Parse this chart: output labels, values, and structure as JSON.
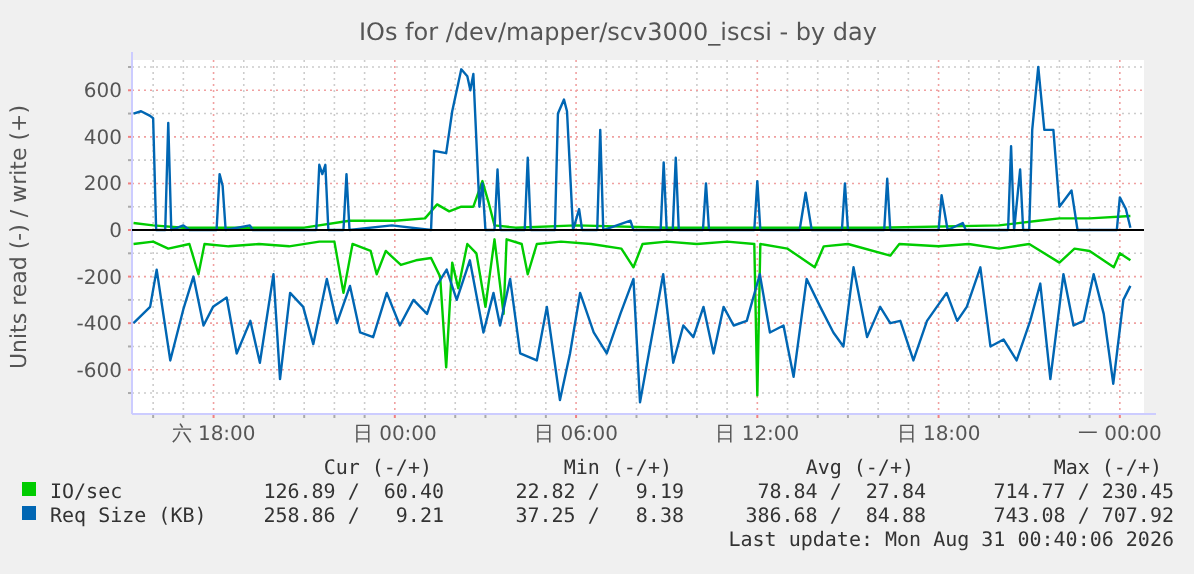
{
  "chart_data": {
    "type": "line",
    "title": "IOs for /dev/mapper/scv3000_iscsi - by day",
    "ylabel": "Units read (-) / write (+)",
    "xlim": [
      "2026-08-29T15:18",
      "2026-08-31T00:48"
    ],
    "ylim": [
      -790,
      730
    ],
    "xticks": [
      {
        "value": "2026-08-29T16:00",
        "label": null
      },
      {
        "value": "2026-08-29T17:00",
        "label": null
      },
      {
        "value": "2026-08-29T18:00",
        "label": "六 18:00"
      },
      {
        "value": "2026-08-29T19:00",
        "label": null
      },
      {
        "value": "2026-08-29T20:00",
        "label": null
      },
      {
        "value": "2026-08-29T21:00",
        "label": null
      },
      {
        "value": "2026-08-29T22:00",
        "label": null
      },
      {
        "value": "2026-08-29T23:00",
        "label": null
      },
      {
        "value": "2026-08-30T00:00",
        "label": "日 00:00"
      },
      {
        "value": "2026-08-30T01:00",
        "label": null
      },
      {
        "value": "2026-08-30T02:00",
        "label": null
      },
      {
        "value": "2026-08-30T03:00",
        "label": null
      },
      {
        "value": "2026-08-30T04:00",
        "label": null
      },
      {
        "value": "2026-08-30T05:00",
        "label": null
      },
      {
        "value": "2026-08-30T06:00",
        "label": "日 06:00"
      },
      {
        "value": "2026-08-30T07:00",
        "label": null
      },
      {
        "value": "2026-08-30T08:00",
        "label": null
      },
      {
        "value": "2026-08-30T09:00",
        "label": null
      },
      {
        "value": "2026-08-30T10:00",
        "label": null
      },
      {
        "value": "2026-08-30T11:00",
        "label": null
      },
      {
        "value": "2026-08-30T12:00",
        "label": "日 12:00"
      },
      {
        "value": "2026-08-30T13:00",
        "label": null
      },
      {
        "value": "2026-08-30T14:00",
        "label": null
      },
      {
        "value": "2026-08-30T15:00",
        "label": null
      },
      {
        "value": "2026-08-30T16:00",
        "label": null
      },
      {
        "value": "2026-08-30T17:00",
        "label": null
      },
      {
        "value": "2026-08-30T18:00",
        "label": "日 18:00"
      },
      {
        "value": "2026-08-30T19:00",
        "label": null
      },
      {
        "value": "2026-08-30T20:00",
        "label": null
      },
      {
        "value": "2026-08-30T21:00",
        "label": null
      },
      {
        "value": "2026-08-30T22:00",
        "label": null
      },
      {
        "value": "2026-08-30T23:00",
        "label": null
      },
      {
        "value": "2026-08-31T00:00",
        "label": "一 00:00"
      }
    ],
    "yticks": [
      {
        "value": -700,
        "label": null
      },
      -600,
      {
        "value": -500,
        "label": null
      },
      -400,
      {
        "value": -300,
        "label": null
      },
      -200,
      {
        "value": -100,
        "label": null
      },
      0,
      {
        "value": 100,
        "label": null
      },
      200,
      {
        "value": 300,
        "label": null
      },
      400,
      {
        "value": 500,
        "label": null
      },
      600,
      {
        "value": 700,
        "label": null
      }
    ],
    "grid": true,
    "legend": "bottom",
    "ref_lines": [
      {
        "axis": "y",
        "value": 0,
        "color": "#000000"
      }
    ],
    "series": [
      {
        "name": "IO/sec",
        "color": "#00cc00",
        "x": [
          "2026-08-29T15:21",
          "2026-08-29T16:00",
          "2026-08-29T17:00",
          "2026-08-29T19:00",
          "2026-08-29T21:00",
          "2026-08-29T22:30",
          "2026-08-30T00:00",
          "2026-08-30T01:00",
          "2026-08-30T01:24",
          "2026-08-30T01:48",
          "2026-08-30T02:12",
          "2026-08-30T02:36",
          "2026-08-30T02:54",
          "2026-08-30T03:06",
          "2026-08-30T03:18",
          "2026-08-30T04:00",
          "2026-08-30T06:00",
          "2026-08-30T09:00",
          "2026-08-30T12:00",
          "2026-08-30T16:00",
          "2026-08-30T20:00",
          "2026-08-30T21:18",
          "2026-08-30T22:00",
          "2026-08-30T23:00",
          "2026-08-31T00:21"
        ],
        "values": [
          30,
          20,
          10,
          10,
          10,
          40,
          40,
          50,
          110,
          80,
          100,
          100,
          210,
          120,
          20,
          10,
          20,
          10,
          10,
          10,
          20,
          40,
          50,
          50,
          60
        ]
      },
      {
        "color": "#00cc00",
        "x": [
          "2026-08-29T15:21",
          "2026-08-29T16:00",
          "2026-08-29T16:30",
          "2026-08-29T17:12",
          "2026-08-29T17:30",
          "2026-08-29T17:42",
          "2026-08-29T18:30",
          "2026-08-29T19:30",
          "2026-08-29T20:30",
          "2026-08-29T21:30",
          "2026-08-29T22:00",
          "2026-08-29T22:18",
          "2026-08-29T22:36",
          "2026-08-29T23:12",
          "2026-08-29T23:24",
          "2026-08-29T23:42",
          "2026-08-30T00:12",
          "2026-08-30T00:42",
          "2026-08-30T01:12",
          "2026-08-30T01:30",
          "2026-08-30T01:42",
          "2026-08-30T01:54",
          "2026-08-30T02:06",
          "2026-08-30T02:24",
          "2026-08-30T02:42",
          "2026-08-30T03:00",
          "2026-08-30T03:18",
          "2026-08-30T03:36",
          "2026-08-30T03:42",
          "2026-08-30T04:12",
          "2026-08-30T04:24",
          "2026-08-30T04:42",
          "2026-08-30T05:30",
          "2026-08-30T06:30",
          "2026-08-30T07:30",
          "2026-08-30T07:54",
          "2026-08-30T08:12",
          "2026-08-30T09:00",
          "2026-08-30T10:00",
          "2026-08-30T11:00",
          "2026-08-30T11:54",
          "2026-08-30T12:00",
          "2026-08-30T12:06",
          "2026-08-30T13:00",
          "2026-08-30T13:54",
          "2026-08-30T14:12",
          "2026-08-30T15:00",
          "2026-08-30T16:24",
          "2026-08-30T16:42",
          "2026-08-30T18:00",
          "2026-08-30T19:00",
          "2026-08-30T20:00",
          "2026-08-30T21:00",
          "2026-08-30T22:00",
          "2026-08-30T22:30",
          "2026-08-30T23:00",
          "2026-08-30T23:48",
          "2026-08-31T00:00",
          "2026-08-31T00:21"
        ],
        "values": [
          -60,
          -50,
          -80,
          -60,
          -190,
          -60,
          -70,
          -60,
          -70,
          -50,
          -50,
          -270,
          -60,
          -90,
          -190,
          -90,
          -150,
          -130,
          -120,
          -200,
          -590,
          -140,
          -250,
          -60,
          -100,
          -330,
          -40,
          -360,
          -40,
          -60,
          -190,
          -60,
          -50,
          -60,
          -80,
          -160,
          -60,
          -50,
          -60,
          -50,
          -60,
          -710,
          -60,
          -80,
          -160,
          -70,
          -60,
          -110,
          -60,
          -70,
          -60,
          -80,
          -60,
          -140,
          -80,
          -90,
          -160,
          -100,
          -130
        ]
      },
      {
        "name": "Req Size (KB)",
        "color": "#0066b3",
        "x": [
          "2026-08-29T15:21",
          "2026-08-29T15:36",
          "2026-08-29T15:54",
          "2026-08-29T16:00",
          "2026-08-29T16:06",
          "2026-08-29T16:24",
          "2026-08-29T16:30",
          "2026-08-29T16:36",
          "2026-08-29T17:00",
          "2026-08-29T17:12",
          "2026-08-29T18:06",
          "2026-08-29T18:12",
          "2026-08-29T18:18",
          "2026-08-29T18:24",
          "2026-08-29T19:12",
          "2026-08-29T19:18",
          "2026-08-29T21:24",
          "2026-08-29T21:30",
          "2026-08-29T21:36",
          "2026-08-29T21:42",
          "2026-08-29T21:48",
          "2026-08-29T22:18",
          "2026-08-29T22:24",
          "2026-08-29T22:30",
          "2026-08-29T23:54",
          "2026-08-30T01:12",
          "2026-08-30T01:18",
          "2026-08-30T01:42",
          "2026-08-30T01:54",
          "2026-08-30T02:12",
          "2026-08-30T02:24",
          "2026-08-30T02:30",
          "2026-08-30T02:36",
          "2026-08-30T02:48",
          "2026-08-30T02:54",
          "2026-08-30T03:00",
          "2026-08-30T03:18",
          "2026-08-30T03:24",
          "2026-08-30T03:30",
          "2026-08-30T04:18",
          "2026-08-30T04:24",
          "2026-08-30T04:30",
          "2026-08-30T05:18",
          "2026-08-30T05:24",
          "2026-08-30T05:36",
          "2026-08-30T05:42",
          "2026-08-30T05:54",
          "2026-08-30T06:06",
          "2026-08-30T06:12",
          "2026-08-30T06:42",
          "2026-08-30T06:48",
          "2026-08-30T06:54",
          "2026-08-30T07:48",
          "2026-08-30T07:54",
          "2026-08-30T08:48",
          "2026-08-30T08:54",
          "2026-08-30T09:00",
          "2026-08-30T09:12",
          "2026-08-30T09:18",
          "2026-08-30T09:24",
          "2026-08-30T10:12",
          "2026-08-30T10:18",
          "2026-08-30T10:24",
          "2026-08-30T11:54",
          "2026-08-30T12:00",
          "2026-08-30T12:06",
          "2026-08-30T13:24",
          "2026-08-30T13:36",
          "2026-08-30T13:48",
          "2026-08-30T14:48",
          "2026-08-30T14:54",
          "2026-08-30T15:00",
          "2026-08-30T16:12",
          "2026-08-30T16:18",
          "2026-08-30T16:24",
          "2026-08-30T18:00",
          "2026-08-30T18:06",
          "2026-08-30T18:18",
          "2026-08-30T18:48",
          "2026-08-30T18:54",
          "2026-08-30T20:18",
          "2026-08-30T20:24",
          "2026-08-30T20:30",
          "2026-08-30T20:42",
          "2026-08-30T20:48",
          "2026-08-30T21:00",
          "2026-08-30T21:06",
          "2026-08-30T21:18",
          "2026-08-30T21:30",
          "2026-08-30T21:48",
          "2026-08-30T22:00",
          "2026-08-30T22:24",
          "2026-08-30T22:36",
          "2026-08-30T23:54",
          "2026-08-31T00:00",
          "2026-08-31T00:12",
          "2026-08-31T00:21"
        ],
        "values": [
          500,
          510,
          490,
          480,
          0,
          0,
          460,
          0,
          20,
          0,
          0,
          240,
          190,
          0,
          20,
          0,
          0,
          280,
          240,
          280,
          0,
          0,
          240,
          0,
          20,
          0,
          340,
          330,
          510,
          690,
          660,
          600,
          670,
          100,
          200,
          0,
          0,
          260,
          0,
          0,
          310,
          0,
          0,
          500,
          560,
          510,
          0,
          90,
          0,
          0,
          430,
          0,
          40,
          0,
          0,
          290,
          0,
          0,
          310,
          0,
          0,
          200,
          0,
          0,
          210,
          0,
          0,
          160,
          0,
          0,
          200,
          0,
          0,
          220,
          0,
          0,
          150,
          0,
          30,
          0,
          0,
          360,
          0,
          260,
          0,
          0,
          430,
          700,
          430,
          430,
          100,
          170,
          0,
          0,
          140,
          90,
          10
        ]
      },
      {
        "color": "#0066b3",
        "x": [
          "2026-08-29T15:21",
          "2026-08-29T15:54",
          "2026-08-29T16:07",
          "2026-08-29T16:34",
          "2026-08-29T17:00",
          "2026-08-29T17:20",
          "2026-08-29T17:40",
          "2026-08-29T17:59",
          "2026-08-29T18:26",
          "2026-08-29T18:46",
          "2026-08-29T19:13",
          "2026-08-29T19:32",
          "2026-08-29T19:59",
          "2026-08-29T20:12",
          "2026-08-29T20:32",
          "2026-08-29T20:58",
          "2026-08-29T21:18",
          "2026-08-29T21:45",
          "2026-08-29T22:05",
          "2026-08-29T22:31",
          "2026-08-29T22:51",
          "2026-08-29T23:17",
          "2026-08-29T23:44",
          "2026-08-30T00:10",
          "2026-08-30T00:37",
          "2026-08-30T01:04",
          "2026-08-30T01:23",
          "2026-08-30T01:43",
          "2026-08-30T02:03",
          "2026-08-30T02:29",
          "2026-08-30T02:56",
          "2026-08-30T03:16",
          "2026-08-30T03:29",
          "2026-08-30T03:49",
          "2026-08-30T04:09",
          "2026-08-30T04:42",
          "2026-08-30T05:02",
          "2026-08-30T05:28",
          "2026-08-30T05:48",
          "2026-08-30T06:08",
          "2026-08-30T06:35",
          "2026-08-30T07:01",
          "2026-08-30T07:28",
          "2026-08-30T07:54",
          "2026-08-30T08:07",
          "2026-08-30T08:27",
          "2026-08-30T08:53",
          "2026-08-30T09:13",
          "2026-08-30T09:33",
          "2026-08-30T09:53",
          "2026-08-30T10:13",
          "2026-08-30T10:33",
          "2026-08-30T10:53",
          "2026-08-30T11:13",
          "2026-08-30T11:39",
          "2026-08-30T12:05",
          "2026-08-30T12:25",
          "2026-08-30T12:52",
          "2026-08-30T13:12",
          "2026-08-30T13:38",
          "2026-08-30T14:05",
          "2026-08-30T14:31",
          "2026-08-30T14:51",
          "2026-08-30T15:11",
          "2026-08-30T15:38",
          "2026-08-30T16:04",
          "2026-08-30T16:24",
          "2026-08-30T16:44",
          "2026-08-30T17:10",
          "2026-08-30T17:37",
          "2026-08-30T18:16",
          "2026-08-30T18:37",
          "2026-08-30T18:56",
          "2026-08-30T19:23",
          "2026-08-30T19:43",
          "2026-08-30T20:09",
          "2026-08-30T20:35",
          "2026-08-30T21:02",
          "2026-08-30T21:22",
          "2026-08-30T21:42",
          "2026-08-30T22:08",
          "2026-08-30T22:28",
          "2026-08-30T22:48",
          "2026-08-30T23:08",
          "2026-08-30T23:28",
          "2026-08-30T23:47",
          "2026-08-31T00:07",
          "2026-08-31T00:21"
        ],
        "values": [
          -400,
          -330,
          -170,
          -560,
          -340,
          -200,
          -410,
          -330,
          -290,
          -530,
          -390,
          -570,
          -190,
          -640,
          -270,
          -330,
          -490,
          -210,
          -400,
          -240,
          -440,
          -460,
          -270,
          -410,
          -300,
          -360,
          -240,
          -170,
          -300,
          -130,
          -440,
          -270,
          -410,
          -210,
          -530,
          -560,
          -330,
          -730,
          -530,
          -270,
          -440,
          -530,
          -360,
          -210,
          -740,
          -500,
          -190,
          -570,
          -410,
          -460,
          -330,
          -530,
          -330,
          -410,
          -390,
          -190,
          -440,
          -410,
          -630,
          -210,
          -330,
          -440,
          -500,
          -160,
          -460,
          -330,
          -400,
          -390,
          -560,
          -390,
          -270,
          -390,
          -330,
          -160,
          -500,
          -470,
          -560,
          -390,
          -230,
          -640,
          -190,
          -410,
          -390,
          -190,
          -360,
          -660,
          -300,
          -240
        ]
      }
    ],
    "annotations": [
      "Cur (-/+)",
      "Min (-/+)",
      "Avg (-/+)",
      "Max (-/+)",
      "126.89 /  60.40",
      "22.82 /   9.19",
      "78.84 /  27.84",
      "714.77 / 230.45",
      "258.86 /   9.21",
      "37.25 /   8.38",
      "386.68 /  84.88",
      "743.08 / 707.92",
      "Last update: Mon Aug 31 00:40:06 2026"
    ]
  }
}
